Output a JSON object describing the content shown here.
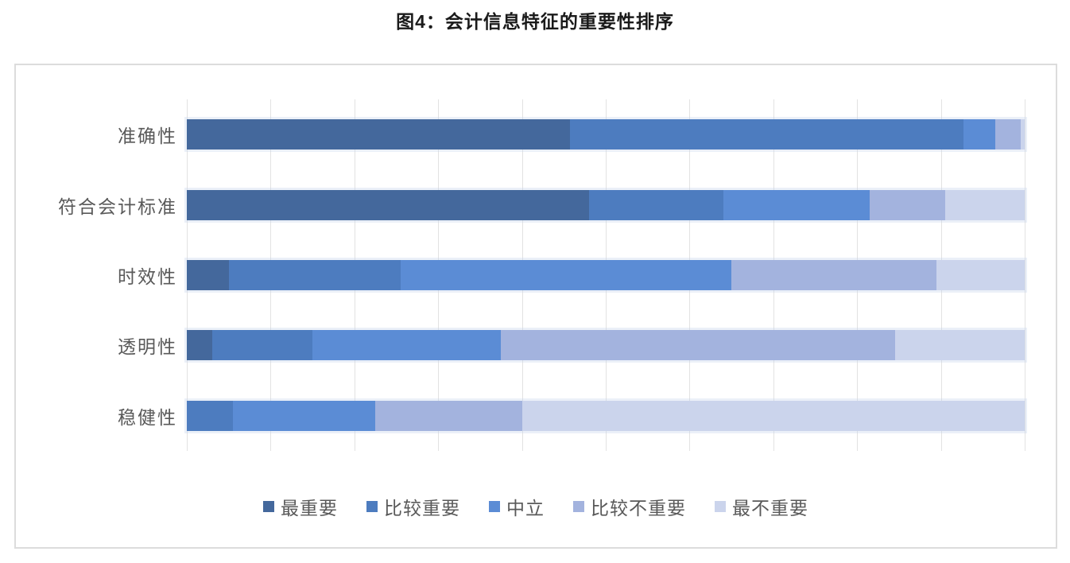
{
  "title": "图4：会计信息特征的重要性排序",
  "chart_data": {
    "type": "bar",
    "orientation": "horizontal",
    "stacked": true,
    "title": "图4：会计信息特征的重要性排序",
    "xlabel": "",
    "ylabel": "",
    "categories": [
      "准确性",
      "符合会计标准",
      "时效性",
      "透明性",
      "稳健性"
    ],
    "series": [
      {
        "name": "最重要",
        "color": "#44689C",
        "values": [
          45.7,
          48.0,
          5.0,
          3.0,
          0.0
        ]
      },
      {
        "name": "比较重要",
        "color": "#4D7CBF",
        "values": [
          47.0,
          16.0,
          20.5,
          12.0,
          5.5
        ]
      },
      {
        "name": "中立",
        "color": "#5B8CD5",
        "values": [
          3.8,
          17.5,
          39.5,
          22.5,
          17.0
        ]
      },
      {
        "name": "比较不重要",
        "color": "#A3B3DE",
        "values": [
          3.0,
          9.0,
          24.5,
          47.0,
          17.5
        ]
      },
      {
        "name": "最不重要",
        "color": "#CBD4EC",
        "values": [
          0.5,
          9.5,
          10.5,
          15.5,
          60.0
        ]
      }
    ],
    "axis": {
      "min": 0,
      "max": 100,
      "step": 10,
      "unit": "percent",
      "tick_labels_visible": false
    },
    "grid": true,
    "legend_position": "bottom"
  },
  "colors": {
    "grid": "#E2E2E2",
    "chart_border": "#DCDCDC",
    "label_text": "#595959",
    "title_text": "#1A1A1A",
    "background": "#FFFFFF"
  }
}
